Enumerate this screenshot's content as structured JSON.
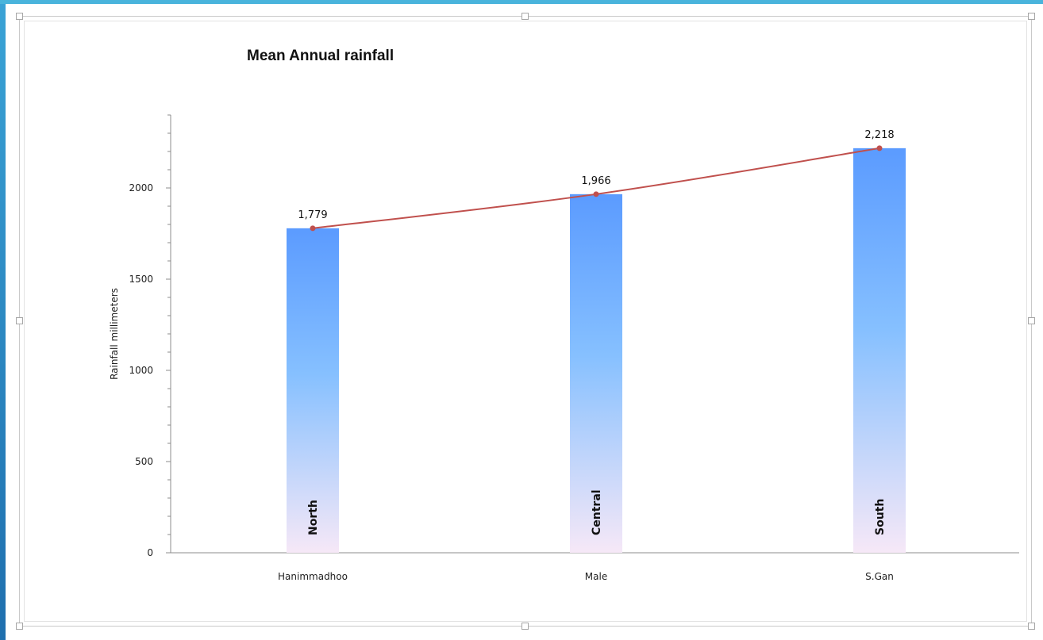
{
  "chart_data": {
    "type": "bar",
    "title": "Mean Annual rainfall",
    "ylabel": "Rainfall millimeters",
    "xlabel": "",
    "categories": [
      "Hanimmadhoo",
      "Male",
      "S.Gan"
    ],
    "regions": [
      "North",
      "Central",
      "South"
    ],
    "values": [
      1779,
      1966,
      2218
    ],
    "data_labels": [
      "1,779",
      "1,966",
      "2,218"
    ],
    "ylim": [
      0,
      2400
    ],
    "yticks": [
      0,
      500,
      1000,
      1500,
      2000
    ],
    "overlay_line": true,
    "grid": false,
    "legend": "none",
    "colors": {
      "bar_top": "#5b9bff",
      "bar_mid": "#86c0ff",
      "bar_bottom": "#f6e8f7",
      "line": "#c0504d",
      "accent": "#3aa3d6"
    }
  }
}
